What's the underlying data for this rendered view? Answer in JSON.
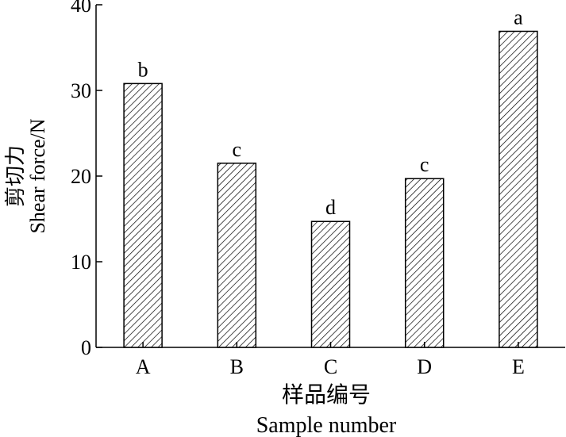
{
  "chart_data": {
    "type": "bar",
    "categories": [
      "A",
      "B",
      "C",
      "D",
      "E"
    ],
    "values": [
      30.8,
      21.5,
      14.7,
      19.7,
      36.9
    ],
    "significance_letters": [
      "b",
      "c",
      "d",
      "c",
      "a"
    ],
    "ylim": [
      0,
      40
    ],
    "yticks": [
      0,
      10,
      20,
      30,
      40
    ],
    "ylabel_cn": "剪切力",
    "ylabel_en": "Shear force/N",
    "xlabel_cn": "样品编号",
    "xlabel_en": "Sample number",
    "bar_fill": "hatched",
    "grid": false,
    "legend": "none"
  }
}
